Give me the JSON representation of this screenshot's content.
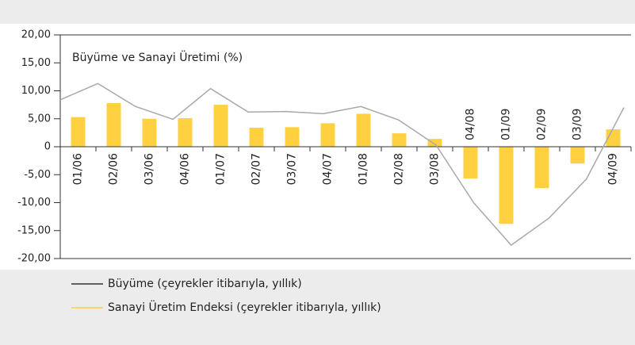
{
  "chart_data": {
    "type": "bar_line",
    "title": "Büyüme ve Sanayi Üretimi (%)",
    "categories": [
      "01/06",
      "02/06",
      "03/06",
      "04/06",
      "01/07",
      "02/07",
      "03/07",
      "04/07",
      "01/08",
      "02/08",
      "03/08",
      "04/08",
      "01/09",
      "02/09",
      "03/09",
      "04/09"
    ],
    "series": [
      {
        "name": "Büyüme (çeyrekler itibarıyla, yıllık)",
        "kind": "line",
        "color": "#a8a8a8",
        "values": [
          8.4,
          11.3,
          7.2,
          4.9,
          10.4,
          6.2,
          6.3,
          5.9,
          7.2,
          4.8,
          0.3,
          -10.0,
          -17.6,
          -12.8,
          -5.8,
          7.0
        ]
      },
      {
        "name": "Sanayi Üretim Endeksi (çeyrekler itibarıyla, yıllık)",
        "kind": "bar",
        "color": "#ffd040",
        "values": [
          5.3,
          7.8,
          5.0,
          5.1,
          7.5,
          3.4,
          3.5,
          4.2,
          5.9,
          2.4,
          1.4,
          -5.7,
          -13.8,
          -7.4,
          -3.0,
          3.1
        ]
      }
    ],
    "ylim": [
      -20,
      20
    ],
    "yticks": [
      {
        "value": 20,
        "label": "20,00"
      },
      {
        "value": 15,
        "label": "15,00"
      },
      {
        "value": 10,
        "label": "10,00"
      },
      {
        "value": 5,
        "label": "5,00"
      },
      0,
      {
        "value": -5,
        "label": "-5,00"
      },
      {
        "value": -10,
        "label": "-10,00"
      },
      {
        "value": -15,
        "label": "-15,00"
      },
      {
        "value": -20,
        "label": "-20,00"
      }
    ]
  }
}
